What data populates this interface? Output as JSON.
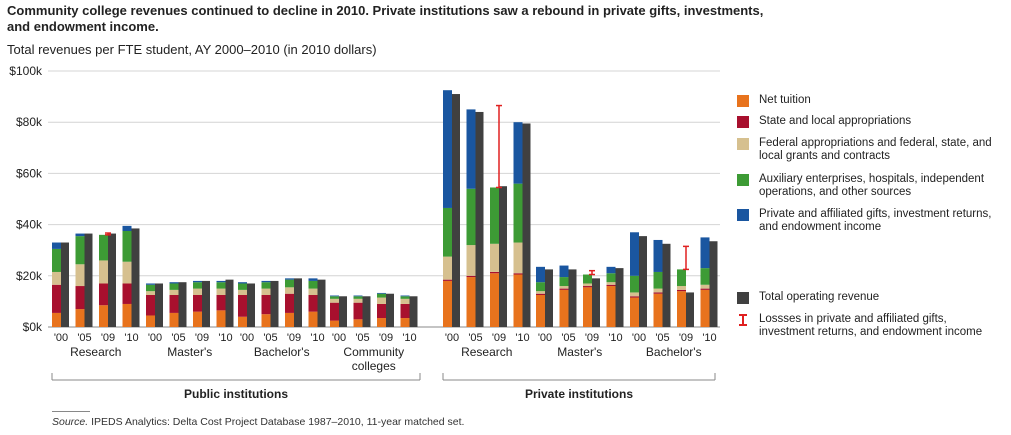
{
  "title": "Community college revenues continued to decline in 2010. Private institutions saw a rebound in private gifts, investments, and endowment income.",
  "subtitle": "Total revenues per FTE student, AY 2000–2010 (in 2010 dollars)",
  "source_label": "Source.",
  "source_text": " IPEDS Analytics: Delta Cost Project Database 1987–2010, 11-year matched set.",
  "colors": {
    "net_tuition": "#e8731d",
    "state_local": "#a8102e",
    "federal": "#d6c08f",
    "auxiliary": "#3d9b35",
    "private_gifts": "#1a56a0",
    "total": "#404040",
    "loss": "#e02020"
  },
  "legend": [
    {
      "key": "net_tuition",
      "label": "Net tuition"
    },
    {
      "key": "state_local",
      "label": "State and local appropriations"
    },
    {
      "key": "federal",
      "label": "Federal appropriations and federal, state, and local grants and contracts"
    },
    {
      "key": "auxiliary",
      "label": "Auxiliary enterprises, hospitals, independent operations, and other sources"
    },
    {
      "key": "private_gifts",
      "label": "Private and affiliated gifts, investment returns, and endowment income"
    },
    {
      "key": "total",
      "label": "Total operating revenue"
    },
    {
      "key": "loss",
      "label": "Lossses in private and affiliated gifts, investment returns, and endowment income"
    }
  ],
  "chart_data": {
    "type": "bar",
    "stacked": true,
    "ylim": [
      0,
      100000
    ],
    "yticks": [
      0,
      20000,
      40000,
      60000,
      80000,
      100000
    ],
    "ytick_labels": [
      "$0k",
      "$20k",
      "$40k",
      "$60k",
      "$80k",
      "$100k"
    ],
    "year_labels": [
      "'00",
      "'05",
      "'09",
      "'10"
    ],
    "series_order": [
      "net_tuition",
      "state_local",
      "federal",
      "auxiliary",
      "private_gifts"
    ],
    "sectors": [
      {
        "sector": "Public institutions",
        "groups": [
          {
            "label": "Research",
            "years": [
              {
                "net_tuition": 5500,
                "state_local": 11000,
                "federal": 5000,
                "auxiliary": 9000,
                "private_gifts": 2500,
                "loss": 0,
                "total": 33000
              },
              {
                "net_tuition": 7000,
                "state_local": 9000,
                "federal": 8500,
                "auxiliary": 11000,
                "private_gifts": 1000,
                "loss": 0,
                "total": 36500
              },
              {
                "net_tuition": 8500,
                "state_local": 8500,
                "federal": 9000,
                "auxiliary": 10000,
                "private_gifts": 0,
                "loss": 700,
                "total": 36500
              },
              {
                "net_tuition": 9000,
                "state_local": 8000,
                "federal": 8500,
                "auxiliary": 12000,
                "private_gifts": 2000,
                "loss": 0,
                "total": 38500
              }
            ]
          },
          {
            "label": "Master's",
            "years": [
              {
                "net_tuition": 4500,
                "state_local": 8000,
                "federal": 1500,
                "auxiliary": 2500,
                "private_gifts": 500,
                "loss": 0,
                "total": 17000
              },
              {
                "net_tuition": 5500,
                "state_local": 7000,
                "federal": 2000,
                "auxiliary": 2500,
                "private_gifts": 500,
                "loss": 0,
                "total": 17500
              },
              {
                "net_tuition": 6000,
                "state_local": 6500,
                "federal": 2500,
                "auxiliary": 2500,
                "private_gifts": 500,
                "loss": 0,
                "total": 18000
              },
              {
                "net_tuition": 6500,
                "state_local": 6000,
                "federal": 2500,
                "auxiliary": 2500,
                "private_gifts": 500,
                "loss": 0,
                "total": 18500
              }
            ]
          },
          {
            "label": "Bachelor's",
            "years": [
              {
                "net_tuition": 4000,
                "state_local": 8500,
                "federal": 2000,
                "auxiliary": 2500,
                "private_gifts": 500,
                "loss": 0,
                "total": 17000
              },
              {
                "net_tuition": 5000,
                "state_local": 7500,
                "federal": 2500,
                "auxiliary": 2500,
                "private_gifts": 500,
                "loss": 0,
                "total": 18000
              },
              {
                "net_tuition": 5500,
                "state_local": 7500,
                "federal": 2500,
                "auxiliary": 3000,
                "private_gifts": 500,
                "loss": 0,
                "total": 19000
              },
              {
                "net_tuition": 6000,
                "state_local": 6500,
                "federal": 2500,
                "auxiliary": 3000,
                "private_gifts": 1000,
                "loss": 0,
                "total": 18500
              }
            ]
          },
          {
            "label": "Community\ncolleges",
            "years": [
              {
                "net_tuition": 2500,
                "state_local": 7000,
                "federal": 1500,
                "auxiliary": 1000,
                "private_gifts": 300,
                "loss": 0,
                "total": 12000
              },
              {
                "net_tuition": 3000,
                "state_local": 6500,
                "federal": 1500,
                "auxiliary": 1000,
                "private_gifts": 300,
                "loss": 0,
                "total": 12000
              },
              {
                "net_tuition": 3500,
                "state_local": 5500,
                "federal": 2500,
                "auxiliary": 1500,
                "private_gifts": 300,
                "loss": 0,
                "total": 13000
              },
              {
                "net_tuition": 3500,
                "state_local": 5500,
                "federal": 2000,
                "auxiliary": 1000,
                "private_gifts": 300,
                "loss": 0,
                "total": 12000
              }
            ]
          }
        ]
      },
      {
        "sector": "Private institutions",
        "groups": [
          {
            "label": "Research",
            "years": [
              {
                "net_tuition": 18000,
                "state_local": 500,
                "federal": 9000,
                "auxiliary": 19000,
                "private_gifts": 46000,
                "loss": 0,
                "total": 91000
              },
              {
                "net_tuition": 19500,
                "state_local": 500,
                "federal": 12000,
                "auxiliary": 22000,
                "private_gifts": 31000,
                "loss": 0,
                "total": 84000
              },
              {
                "net_tuition": 21000,
                "state_local": 500,
                "federal": 11000,
                "auxiliary": 22000,
                "private_gifts": 0,
                "loss": 32000,
                "total": 55000
              },
              {
                "net_tuition": 20500,
                "state_local": 500,
                "federal": 12000,
                "auxiliary": 23000,
                "private_gifts": 24000,
                "loss": 0,
                "total": 79500
              }
            ]
          },
          {
            "label": "Master's",
            "years": [
              {
                "net_tuition": 12500,
                "state_local": 500,
                "federal": 1000,
                "auxiliary": 3500,
                "private_gifts": 6000,
                "loss": 0,
                "total": 22500
              },
              {
                "net_tuition": 14500,
                "state_local": 500,
                "federal": 1000,
                "auxiliary": 3500,
                "private_gifts": 4500,
                "loss": 0,
                "total": 22500
              },
              {
                "net_tuition": 15500,
                "state_local": 500,
                "federal": 1000,
                "auxiliary": 3500,
                "private_gifts": 0,
                "loss": 1500,
                "total": 19000
              },
              {
                "net_tuition": 16000,
                "state_local": 500,
                "federal": 1000,
                "auxiliary": 3500,
                "private_gifts": 2500,
                "loss": 0,
                "total": 23000
              }
            ]
          },
          {
            "label": "Bachelor's",
            "years": [
              {
                "net_tuition": 11500,
                "state_local": 500,
                "federal": 1500,
                "auxiliary": 6500,
                "private_gifts": 17000,
                "loss": 0,
                "total": 35500
              },
              {
                "net_tuition": 13000,
                "state_local": 500,
                "federal": 1500,
                "auxiliary": 6500,
                "private_gifts": 12500,
                "loss": 0,
                "total": 32500
              },
              {
                "net_tuition": 14000,
                "state_local": 500,
                "federal": 1500,
                "auxiliary": 6500,
                "private_gifts": 0,
                "loss": 9000,
                "total": 13500
              },
              {
                "net_tuition": 14500,
                "state_local": 500,
                "federal": 1500,
                "auxiliary": 6500,
                "private_gifts": 12000,
                "loss": 0,
                "total": 33500
              }
            ]
          }
        ]
      }
    ]
  }
}
